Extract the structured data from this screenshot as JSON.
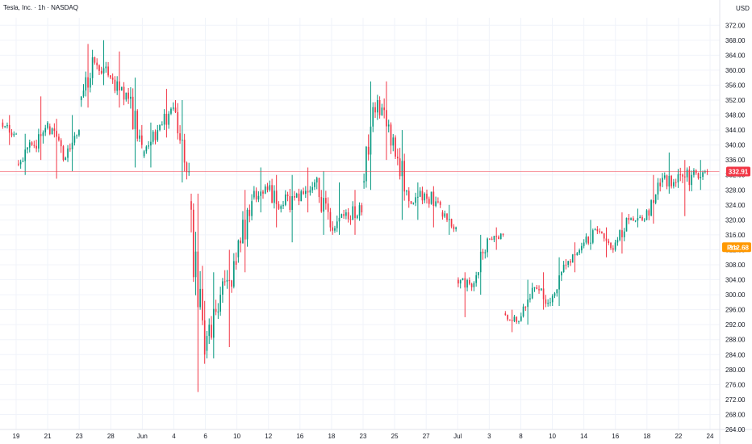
{
  "header": {
    "title": "Tesla, Inc. · 1h · NASDAQ",
    "currency": "USD"
  },
  "price_badges": {
    "last_price": "332.91",
    "pre_label": "Pre",
    "pre_price": "312.68"
  },
  "colors": {
    "up": "#089981",
    "down": "#f23645",
    "pre_badge": "#ff9800",
    "last_line": "#f23645"
  },
  "chart_data": {
    "type": "candlestick",
    "title": "Tesla, Inc. · 1h · NASDAQ",
    "currency": "USD",
    "ylim": [
      264,
      374
    ],
    "yticks": [
      264,
      268,
      272,
      276,
      280,
      284,
      288,
      292,
      296,
      300,
      304,
      308,
      312,
      316,
      320,
      324,
      328,
      332,
      336,
      340,
      344,
      348,
      352,
      356,
      360,
      364,
      368,
      372
    ],
    "xticks": [
      "19",
      "21",
      "23",
      "28",
      "Jun",
      "4",
      "6",
      "10",
      "12",
      "16",
      "18",
      "23",
      "25",
      "27",
      "Jul",
      "3",
      "8",
      "10",
      "14",
      "16",
      "18",
      "22",
      "24"
    ],
    "last_price": 332.91,
    "pre_market_price": 312.68,
    "series": [
      {
        "segment": "May 19",
        "open": 346,
        "high": 348,
        "low": 340,
        "close": 343
      },
      {
        "segment": "May 21",
        "open": 335,
        "high": 343,
        "low": 332,
        "close": 340
      },
      {
        "segment": "May 22",
        "open": 340,
        "high": 353,
        "low": 336,
        "close": 346
      },
      {
        "segment": "May 23",
        "open": 345,
        "high": 347,
        "low": 331,
        "close": 336
      },
      {
        "segment": "May 26",
        "open": 336,
        "high": 348,
        "low": 333,
        "close": 344
      },
      {
        "segment": "May 27",
        "open": 352,
        "high": 367,
        "low": 350,
        "close": 362
      },
      {
        "segment": "May 28",
        "open": 362,
        "high": 368,
        "low": 356,
        "close": 358
      },
      {
        "segment": "May 29",
        "open": 358,
        "high": 365,
        "low": 350,
        "close": 354
      },
      {
        "segment": "May 30",
        "open": 354,
        "high": 358,
        "low": 334,
        "close": 340
      },
      {
        "segment": "Jun 2",
        "open": 337,
        "high": 346,
        "low": 334,
        "close": 344
      },
      {
        "segment": "Jun 3",
        "open": 344,
        "high": 355,
        "low": 342,
        "close": 350
      },
      {
        "segment": "Jun 4",
        "open": 350,
        "high": 352,
        "low": 330,
        "close": 333
      },
      {
        "segment": "Jun 5",
        "open": 325,
        "high": 327,
        "low": 274,
        "close": 284
      },
      {
        "segment": "Jun 6",
        "open": 285,
        "high": 306,
        "low": 283,
        "close": 300
      },
      {
        "segment": "Jun 9",
        "open": 300,
        "high": 312,
        "low": 286,
        "close": 308
      },
      {
        "segment": "Jun 10",
        "open": 310,
        "high": 328,
        "low": 306,
        "close": 325
      },
      {
        "segment": "Jun 11",
        "open": 326,
        "high": 334,
        "low": 322,
        "close": 328
      },
      {
        "segment": "Jun 12",
        "open": 328,
        "high": 332,
        "low": 318,
        "close": 324
      },
      {
        "segment": "Jun 13",
        "open": 324,
        "high": 332,
        "low": 314,
        "close": 325
      },
      {
        "segment": "Jun 16",
        "open": 325,
        "high": 334,
        "low": 322,
        "close": 330
      },
      {
        "segment": "Jun 17",
        "open": 330,
        "high": 333,
        "low": 316,
        "close": 318
      },
      {
        "segment": "Jun 18",
        "open": 318,
        "high": 330,
        "low": 316,
        "close": 322
      },
      {
        "segment": "Jun 20",
        "open": 322,
        "high": 328,
        "low": 316,
        "close": 322
      },
      {
        "segment": "Jun 23",
        "open": 330,
        "high": 357,
        "low": 328,
        "close": 352
      },
      {
        "segment": "Jun 24",
        "open": 352,
        "high": 357,
        "low": 336,
        "close": 342
      },
      {
        "segment": "Jun 25",
        "open": 342,
        "high": 344,
        "low": 320,
        "close": 325
      },
      {
        "segment": "Jun 26",
        "open": 325,
        "high": 330,
        "low": 320,
        "close": 327
      },
      {
        "segment": "Jun 27",
        "open": 327,
        "high": 329,
        "low": 318,
        "close": 324
      },
      {
        "segment": "Jun 30",
        "open": 322,
        "high": 324,
        "low": 316,
        "close": 318
      },
      {
        "segment": "Jul 1",
        "open": 304,
        "high": 306,
        "low": 294,
        "close": 302
      },
      {
        "segment": "Jul 2",
        "open": 302,
        "high": 316,
        "low": 300,
        "close": 315
      },
      {
        "segment": "Jul 3",
        "open": 315,
        "high": 318,
        "low": 312,
        "close": 316
      },
      {
        "segment": "Jul 7",
        "open": 295,
        "high": 296,
        "low": 290,
        "close": 293
      },
      {
        "segment": "Jul 8",
        "open": 293,
        "high": 304,
        "low": 292,
        "close": 302
      },
      {
        "segment": "Jul 9",
        "open": 302,
        "high": 306,
        "low": 296,
        "close": 298
      },
      {
        "segment": "Jul 10",
        "open": 298,
        "high": 310,
        "low": 297,
        "close": 308
      },
      {
        "segment": "Jul 11",
        "open": 308,
        "high": 314,
        "low": 306,
        "close": 313
      },
      {
        "segment": "Jul 14",
        "open": 313,
        "high": 320,
        "low": 312,
        "close": 317
      },
      {
        "segment": "Jul 15",
        "open": 317,
        "high": 318,
        "low": 310,
        "close": 312
      },
      {
        "segment": "Jul 16",
        "open": 312,
        "high": 322,
        "low": 311,
        "close": 320
      },
      {
        "segment": "Jul 17",
        "open": 320,
        "high": 323,
        "low": 318,
        "close": 320
      },
      {
        "segment": "Jul 18",
        "open": 320,
        "high": 332,
        "low": 319,
        "close": 329
      },
      {
        "segment": "Jul 21",
        "open": 330,
        "high": 338,
        "low": 327,
        "close": 330
      },
      {
        "segment": "Jul 22",
        "open": 330,
        "high": 336,
        "low": 321,
        "close": 332
      },
      {
        "segment": "Jul 23",
        "open": 332,
        "high": 336,
        "low": 328,
        "close": 332.91
      }
    ]
  }
}
